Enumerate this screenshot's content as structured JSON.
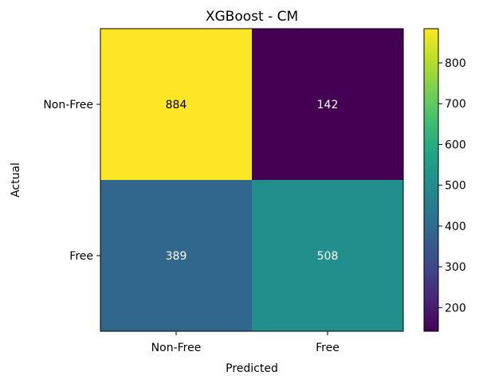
{
  "chart_data": {
    "type": "heatmap",
    "title": "XGBoost - CM",
    "xlabel": "Predicted",
    "ylabel": "Actual",
    "x_categories": [
      "Non-Free",
      "Free"
    ],
    "y_categories": [
      "Non-Free",
      "Free"
    ],
    "values": [
      [
        884,
        142
      ],
      [
        389,
        508
      ]
    ],
    "colormap": "viridis",
    "colorbar": {
      "min": 142,
      "max": 884,
      "ticks": [
        200,
        300,
        400,
        500,
        600,
        700,
        800
      ]
    },
    "grid": false
  }
}
